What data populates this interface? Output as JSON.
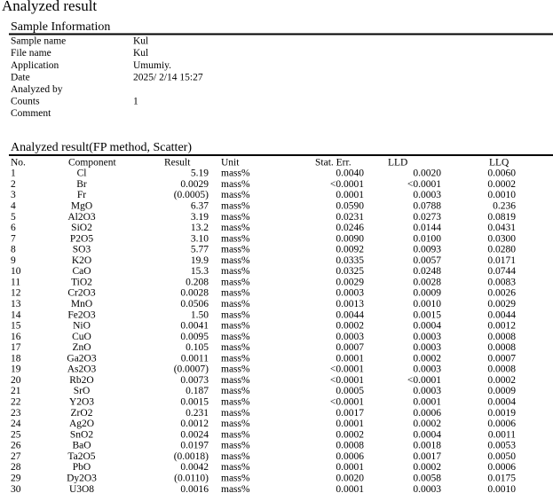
{
  "header": {
    "title": "Analyzed result"
  },
  "sample_info": {
    "heading": "Sample Information",
    "fields": [
      {
        "label": "Sample name",
        "value": "Kul"
      },
      {
        "label": "File name",
        "value": "Kul"
      },
      {
        "label": "Application",
        "value": "Umumiy."
      },
      {
        "label": "Date",
        "value": "2025/ 2/14 15:27"
      },
      {
        "label": "Analyzed by"
      },
      {
        "label": "Counts",
        "value": "1"
      },
      {
        "label": "Comment"
      }
    ]
  },
  "table": {
    "heading": "Analyzed result(FP method, Scatter)",
    "columns": [
      "No.",
      "Component",
      "Result",
      "Unit",
      "Stat. Err.",
      "LLD",
      "LLQ"
    ],
    "rows": [
      [
        "1",
        "Cl",
        "5.19",
        "mass%",
        "0.0040",
        "0.0020",
        "0.0060"
      ],
      [
        "2",
        "Br",
        "0.0029",
        "mass%",
        "<0.0001",
        "<0.0001",
        "0.0002"
      ],
      [
        "3",
        "Fr",
        "(0.0005)",
        "mass%",
        "0.0001",
        "0.0003",
        "0.0010"
      ],
      [
        "4",
        "MgO",
        "6.37",
        "mass%",
        "0.0590",
        "0.0788",
        "0.236"
      ],
      [
        "5",
        "Al2O3",
        "3.19",
        "mass%",
        "0.0231",
        "0.0273",
        "0.0819"
      ],
      [
        "6",
        "SiO2",
        "13.2",
        "mass%",
        "0.0246",
        "0.0144",
        "0.0431"
      ],
      [
        "7",
        "P2O5",
        "3.10",
        "mass%",
        "0.0090",
        "0.0100",
        "0.0300"
      ],
      [
        "8",
        "SO3",
        "5.77",
        "mass%",
        "0.0092",
        "0.0093",
        "0.0280"
      ],
      [
        "9",
        "K2O",
        "19.9",
        "mass%",
        "0.0335",
        "0.0057",
        "0.0171"
      ],
      [
        "10",
        "CaO",
        "15.3",
        "mass%",
        "0.0325",
        "0.0248",
        "0.0744"
      ],
      [
        "11",
        "TiO2",
        "0.208",
        "mass%",
        "0.0029",
        "0.0028",
        "0.0083"
      ],
      [
        "12",
        "Cr2O3",
        "0.0028",
        "mass%",
        "0.0003",
        "0.0009",
        "0.0026"
      ],
      [
        "13",
        "MnO",
        "0.0506",
        "mass%",
        "0.0013",
        "0.0010",
        "0.0029"
      ],
      [
        "14",
        "Fe2O3",
        "1.50",
        "mass%",
        "0.0044",
        "0.0015",
        "0.0044"
      ],
      [
        "15",
        "NiO",
        "0.0041",
        "mass%",
        "0.0002",
        "0.0004",
        "0.0012"
      ],
      [
        "16",
        "CuO",
        "0.0095",
        "mass%",
        "0.0003",
        "0.0003",
        "0.0008"
      ],
      [
        "17",
        "ZnO",
        "0.105",
        "mass%",
        "0.0007",
        "0.0003",
        "0.0008"
      ],
      [
        "18",
        "Ga2O3",
        "0.0011",
        "mass%",
        "0.0001",
        "0.0002",
        "0.0007"
      ],
      [
        "19",
        "As2O3",
        "(0.0007)",
        "mass%",
        "<0.0001",
        "0.0003",
        "0.0008"
      ],
      [
        "20",
        "Rb2O",
        "0.0073",
        "mass%",
        "<0.0001",
        "<0.0001",
        "0.0002"
      ],
      [
        "21",
        "SrO",
        "0.187",
        "mass%",
        "0.0005",
        "0.0003",
        "0.0009"
      ],
      [
        "22",
        "Y2O3",
        "0.0015",
        "mass%",
        "<0.0001",
        "0.0001",
        "0.0004"
      ],
      [
        "23",
        "ZrO2",
        "0.231",
        "mass%",
        "0.0017",
        "0.0006",
        "0.0019"
      ],
      [
        "24",
        "Ag2O",
        "0.0012",
        "mass%",
        "0.0001",
        "0.0002",
        "0.0006"
      ],
      [
        "25",
        "SnO2",
        "0.0024",
        "mass%",
        "0.0002",
        "0.0004",
        "0.0011"
      ],
      [
        "26",
        "BaO",
        "0.0197",
        "mass%",
        "0.0008",
        "0.0018",
        "0.0053"
      ],
      [
        "27",
        "Ta2O5",
        "(0.0018)",
        "mass%",
        "0.0006",
        "0.0017",
        "0.0050"
      ],
      [
        "28",
        "PbO",
        "0.0042",
        "mass%",
        "0.0001",
        "0.0002",
        "0.0006"
      ],
      [
        "29",
        "Dy2O3",
        "(0.0110)",
        "mass%",
        "0.0020",
        "0.0058",
        "0.0175"
      ],
      [
        "30",
        "U3O8",
        "0.0016",
        "mass%",
        "0.0001",
        "0.0003",
        "0.0010"
      ]
    ]
  }
}
